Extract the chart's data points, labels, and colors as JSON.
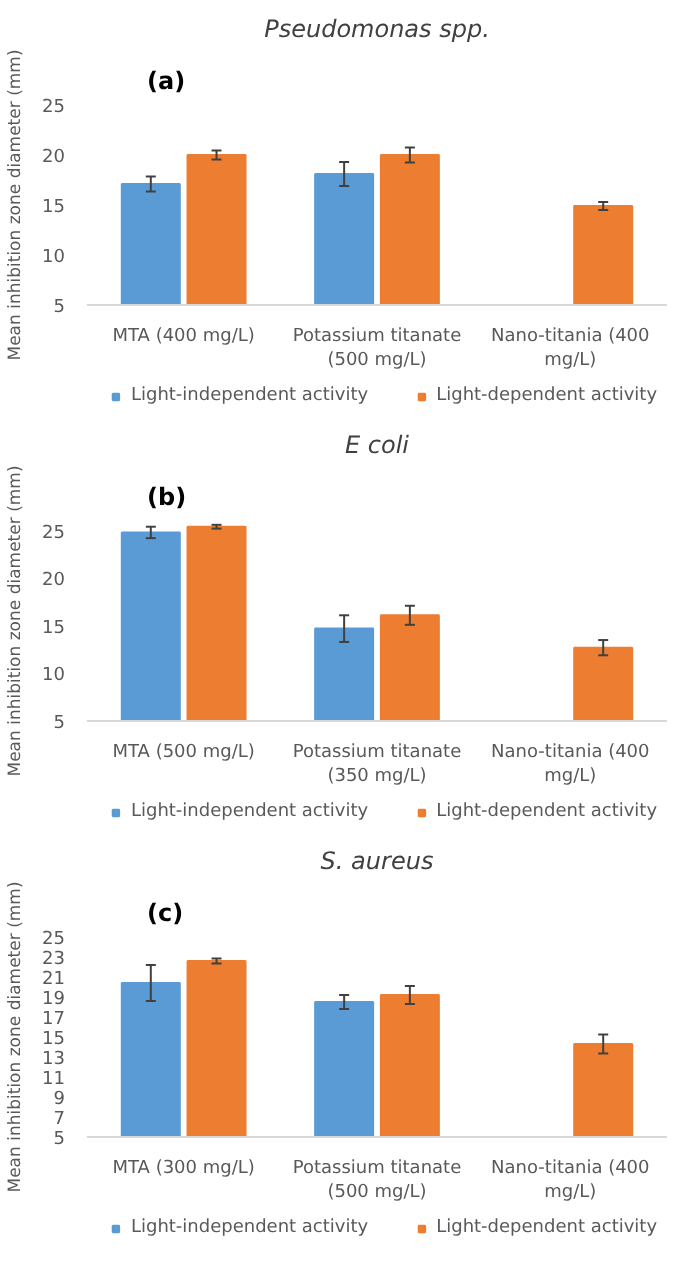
{
  "chart_data": [
    {
      "type": "bar",
      "title": "Pseudomonas spp.",
      "annotations": [
        "(a)"
      ],
      "ylabel": "Mean inhibition zone diameter (mm)",
      "categories": [
        "MTA (400 mg/L)",
        "Potassium titanate (500 mg/L)",
        "Nano-titania (400 mg/L)"
      ],
      "ylim": [
        5,
        25
      ],
      "yticks": [
        5,
        10,
        15,
        20,
        25
      ],
      "grid": false,
      "legend": "bottom",
      "series": [
        {
          "name": "Light-independent activity",
          "color": "#5b9bd5",
          "values": [
            17.1,
            18.1,
            null
          ],
          "errors": [
            0.75,
            1.2,
            null
          ]
        },
        {
          "name": "Light-dependent activity",
          "color": "#ed7d31",
          "values": [
            20.0,
            20.0,
            14.9
          ],
          "errors": [
            0.45,
            0.75,
            0.4
          ]
        }
      ]
    },
    {
      "type": "bar",
      "title": "E coli",
      "annotations": [
        "(b)"
      ],
      "ylabel": "Mean inhibition zone diameter (mm)",
      "categories": [
        "MTA (500 mg/L)",
        "Potassium titanate (350 mg/L)",
        "Nano-titania (400 mg/L)"
      ],
      "ylim": [
        5,
        26
      ],
      "yticks": [
        5,
        10,
        15,
        20,
        25
      ],
      "grid": false,
      "legend": "bottom",
      "series": [
        {
          "name": "Light-independent activity",
          "color": "#5b9bd5",
          "values": [
            24.8,
            14.7,
            null
          ],
          "errors": [
            0.6,
            1.4,
            null
          ]
        },
        {
          "name": "Light-dependent activity",
          "color": "#ed7d31",
          "values": [
            25.4,
            16.1,
            12.7
          ],
          "errors": [
            0.2,
            1.0,
            0.8
          ]
        }
      ]
    },
    {
      "type": "bar",
      "title": "S. aureus",
      "annotations": [
        "(c)"
      ],
      "ylabel": "Mean inhibition zone diameter (mm)",
      "categories": [
        "MTA (300 mg/L)",
        "Potassium titanate (500 mg/L)",
        "Nano-titania (400 mg/L)"
      ],
      "ylim": [
        5,
        25
      ],
      "yticks": [
        5,
        7,
        9,
        11,
        13,
        15,
        17,
        19,
        21,
        23,
        25
      ],
      "grid": false,
      "legend": "bottom",
      "series": [
        {
          "name": "Light-independent activity",
          "color": "#5b9bd5",
          "values": [
            20.4,
            18.5,
            null
          ],
          "errors": [
            1.8,
            0.7,
            null
          ]
        },
        {
          "name": "Light-dependent activity",
          "color": "#ed7d31",
          "values": [
            22.6,
            19.2,
            14.3
          ],
          "errors": [
            0.25,
            0.9,
            0.95
          ]
        }
      ]
    }
  ]
}
